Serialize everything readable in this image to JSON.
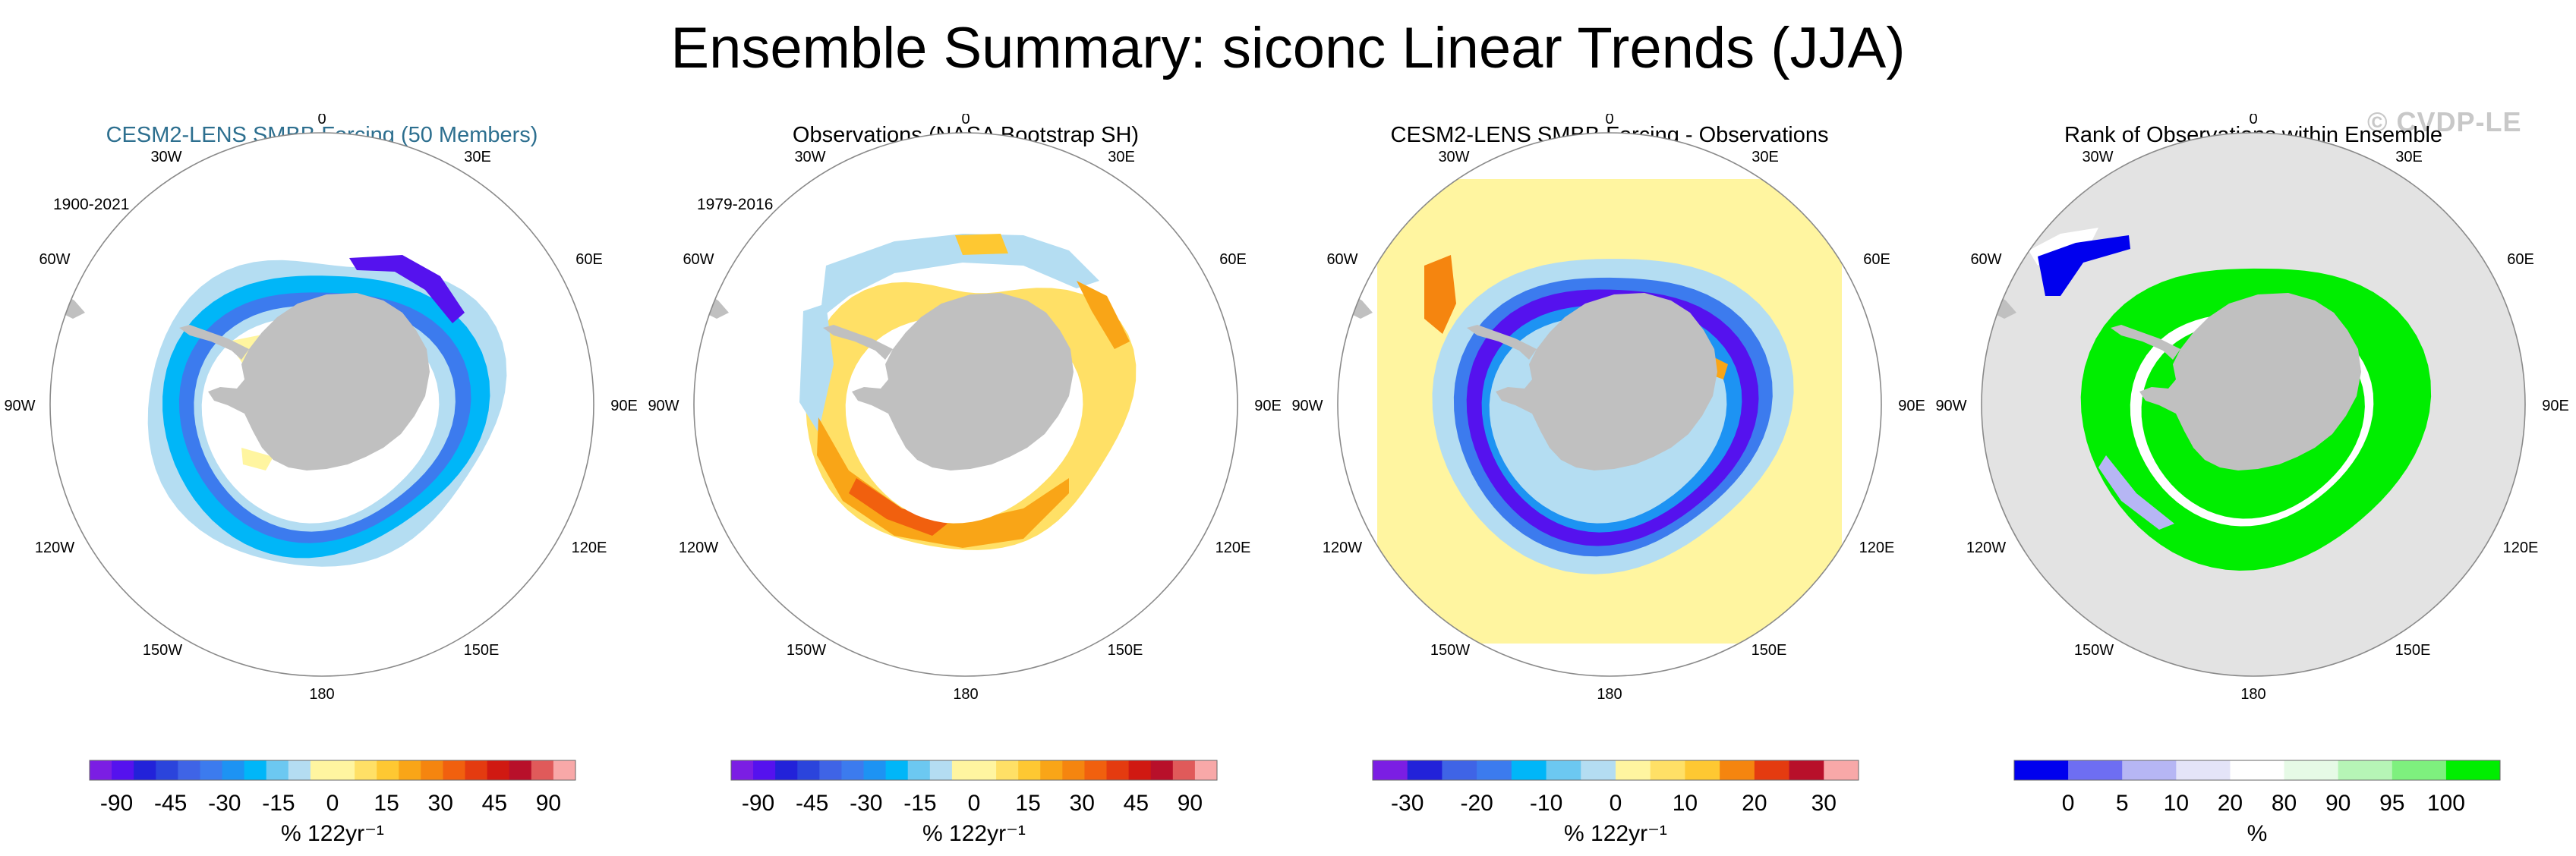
{
  "figure": {
    "title": "Ensemble Summary: siconc Linear Trends (JJA)",
    "watermark": "© CVDP-LE"
  },
  "map_labels": {
    "top": "0",
    "bottom": "180",
    "left": "90W",
    "right": "90E",
    "nw30": "30W",
    "ne30": "30E",
    "nw60": "60W",
    "ne60": "60E",
    "sw120": "120W",
    "se120": "120E",
    "sw150": "150W",
    "se150": "150E"
  },
  "colors": {
    "land": "#c0c0c0",
    "ocean": "#ffffff",
    "outside": "#e3e3e3",
    "diverging": [
      "#7b1ee3",
      "#5512ee",
      "#2222d9",
      "#2b44dc",
      "#3f64e6",
      "#3c7bee",
      "#1d93f3",
      "#00b6f8",
      "#6cc8f1",
      "#b4ddf2",
      "#fff5a0",
      "#ffe066",
      "#fec832",
      "#f9a517",
      "#f5850f",
      "#f1600e",
      "#e43b10",
      "#d01912",
      "#b8102a",
      "#e05a5a",
      "#f8a8a8"
    ],
    "rank": [
      "#0000ee",
      "#6e6ef2",
      "#b6b6f4",
      "#e4e4f8",
      "#ffffff",
      "#e6fae6",
      "#b6f5b6",
      "#7ef07e",
      "#00ee00"
    ]
  },
  "chart_data": [
    {
      "type": "polar_map",
      "title": "CESM2-LENS SMBB Forcing (50 Members)",
      "period": "1900-2021",
      "variable": "siconc JJA linear trend",
      "units": "% 122yr⁻¹",
      "colorbar_ticks": [
        "-90",
        "-45",
        "-30",
        "-15",
        "0",
        "15",
        "30",
        "45",
        "90"
      ],
      "colorbar_levels": [
        -90,
        -75,
        -60,
        -45,
        -40,
        -35,
        -30,
        -25,
        -20,
        -15,
        -10,
        0,
        10,
        15,
        20,
        25,
        30,
        35,
        40,
        45,
        60,
        75,
        90
      ]
    },
    {
      "type": "polar_map",
      "title": "Observations (NASA Bootstrap SH)",
      "period": "1979-2016",
      "variable": "siconc JJA linear trend",
      "units": "% 122yr⁻¹",
      "colorbar_ticks": [
        "-90",
        "-45",
        "-30",
        "-15",
        "0",
        "15",
        "30",
        "45",
        "90"
      ],
      "colorbar_levels": [
        -90,
        -75,
        -60,
        -45,
        -40,
        -35,
        -30,
        -25,
        -20,
        -15,
        -10,
        0,
        10,
        15,
        20,
        25,
        30,
        35,
        40,
        45,
        60,
        75,
        90
      ]
    },
    {
      "type": "polar_map",
      "title": "CESM2-LENS SMBB Forcing - Observations",
      "period": "",
      "variable": "siconc JJA linear trend difference",
      "units": "% 122yr⁻¹",
      "colorbar_ticks": [
        "-30",
        "-20",
        "-10",
        "0",
        "10",
        "20",
        "30"
      ],
      "colorbar_levels": [
        -40,
        -35,
        -30,
        -25,
        -20,
        -15,
        -10,
        -5,
        0,
        5,
        10,
        15,
        20,
        25,
        30,
        35,
        40
      ]
    },
    {
      "type": "polar_map",
      "title": "Rank of Observations within Ensemble",
      "period": "",
      "variable": "rank",
      "units": "%",
      "colorbar_ticks": [
        "0",
        "5",
        "10",
        "20",
        "80",
        "90",
        "95",
        "100"
      ],
      "colorbar_levels": [
        0,
        5,
        10,
        20,
        80,
        90,
        95,
        100
      ]
    }
  ]
}
